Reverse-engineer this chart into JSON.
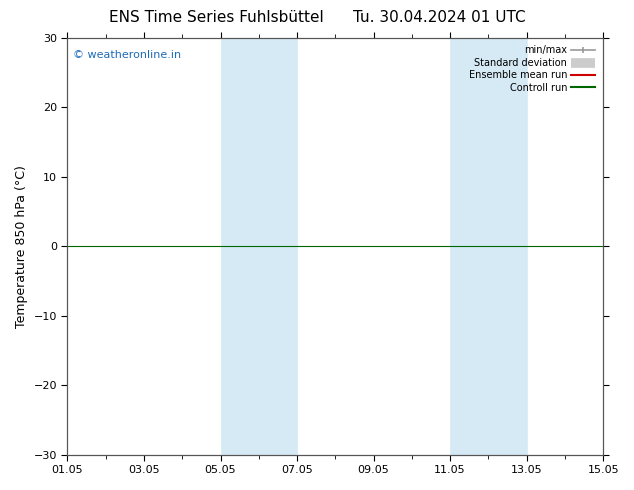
{
  "title_left": "ENS Time Series Fuhlsbüttel",
  "title_right": "Tu. 30.04.2024 01 UTC",
  "ylabel": "Temperature 850 hPa (°C)",
  "ylim": [
    -30,
    30
  ],
  "yticks": [
    -30,
    -20,
    -10,
    0,
    10,
    20,
    30
  ],
  "xtick_labels": [
    "01.05",
    "03.05",
    "05.05",
    "07.05",
    "09.05",
    "11.05",
    "13.05",
    "15.05"
  ],
  "xtick_positions": [
    0,
    2,
    4,
    6,
    8,
    10,
    12,
    14
  ],
  "shade_bands": [
    {
      "x_start": 4,
      "x_end": 5
    },
    {
      "x_start": 5,
      "x_end": 6
    },
    {
      "x_start": 10,
      "x_end": 11
    },
    {
      "x_start": 11,
      "x_end": 12
    }
  ],
  "shade_color": "#d6eaf5",
  "shade_border_color": "#aad0e8",
  "zero_line_color": "#006600",
  "watermark_text": "© weatheronline.in",
  "watermark_color": "#1e6bb8",
  "legend_items": [
    {
      "label": "min/max",
      "color": "#999999",
      "lw": 1.2
    },
    {
      "label": "Standard deviation",
      "color": "#cccccc",
      "lw": 7
    },
    {
      "label": "Ensemble mean run",
      "color": "#cc0000",
      "lw": 1.5
    },
    {
      "label": "Controll run",
      "color": "#006600",
      "lw": 1.5
    }
  ],
  "background_color": "#ffffff",
  "plot_bg_color": "#ffffff",
  "x_total_days": 14,
  "title_fontsize": 11,
  "tick_fontsize": 8,
  "ylabel_fontsize": 9,
  "spine_color": "#555555"
}
